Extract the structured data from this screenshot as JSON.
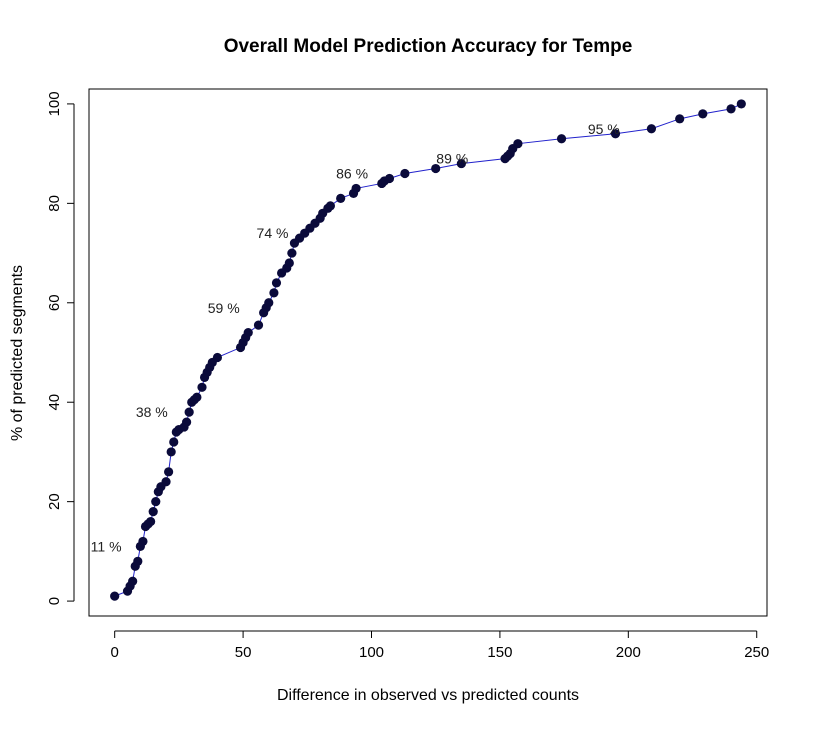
{
  "chart_data": {
    "type": "line",
    "title": "Overall Model Prediction Accuracy for Tempe",
    "xlabel": "Difference in observed vs predicted counts",
    "ylabel": "% of predicted segments",
    "xlim": [
      -10,
      254
    ],
    "ylim": [
      -3,
      103
    ],
    "xticks": [
      0,
      50,
      100,
      150,
      200,
      250
    ],
    "yticks": [
      0,
      20,
      40,
      60,
      80,
      100
    ],
    "grid": false,
    "line_color": "#2222cc",
    "point_color": "#0a0a3a",
    "x": [
      0,
      5,
      6,
      7,
      8,
      9,
      10,
      11,
      12,
      13,
      14,
      15,
      16,
      17,
      18,
      20,
      21,
      22,
      23,
      24,
      25,
      27,
      28,
      29,
      30,
      31,
      32,
      34,
      35,
      36,
      37,
      38,
      40,
      49,
      50,
      51,
      52,
      56,
      58,
      59,
      60,
      62,
      63,
      65,
      67,
      68,
      69,
      70,
      72,
      74,
      76,
      78,
      80,
      81,
      83,
      84,
      88,
      93,
      94,
      104,
      105,
      107,
      113,
      125,
      135,
      152,
      153,
      154,
      155,
      157,
      174,
      195,
      209,
      220,
      229,
      240,
      244
    ],
    "y": [
      1,
      2,
      3,
      4,
      7,
      8,
      11,
      12,
      15,
      15.5,
      16,
      18,
      20,
      22,
      23,
      24,
      26,
      30,
      32,
      34,
      34.5,
      35,
      36,
      38,
      40,
      40.5,
      41,
      43,
      45,
      46,
      47,
      48,
      49,
      51,
      52,
      53,
      54,
      55.5,
      58,
      59,
      60,
      62,
      64,
      66,
      67,
      68,
      70,
      72,
      73,
      74,
      75,
      76,
      77,
      78,
      79,
      79.5,
      81,
      82,
      83,
      84,
      84.5,
      85,
      86,
      87,
      88,
      89,
      89.5,
      90,
      91,
      92,
      93,
      94,
      95,
      97,
      98,
      99,
      100
    ],
    "annotations": [
      {
        "text": "11 %",
        "x": 5,
        "y": 11
      },
      {
        "text": "38 %",
        "x": 23,
        "y": 38
      },
      {
        "text": "59 %",
        "x": 51,
        "y": 59
      },
      {
        "text": "74 %",
        "x": 70,
        "y": 74
      },
      {
        "text": "86 %",
        "x": 101,
        "y": 86
      },
      {
        "text": "89 %",
        "x": 140,
        "y": 89
      },
      {
        "text": "95 %",
        "x": 199,
        "y": 95
      }
    ]
  }
}
